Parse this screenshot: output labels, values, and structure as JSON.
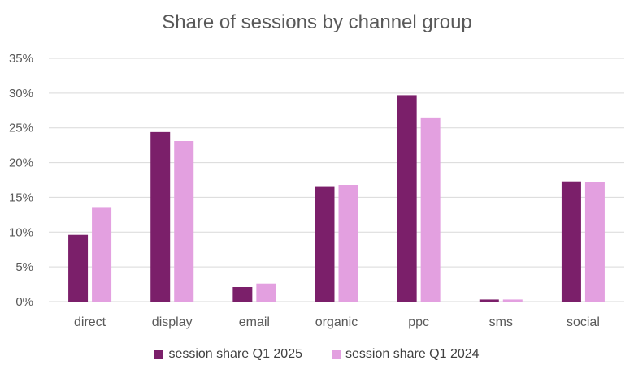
{
  "chart_data": {
    "type": "bar",
    "title": "Share of sessions by channel group",
    "categories": [
      "direct",
      "display",
      "email",
      "organic",
      "ppc",
      "sms",
      "social"
    ],
    "series": [
      {
        "name": "session share Q1 2025",
        "color": "#7B1F6A",
        "values": [
          9.6,
          24.4,
          2.1,
          16.5,
          29.7,
          0.3,
          17.3
        ]
      },
      {
        "name": "session share Q1 2024",
        "color": "#E3A0E0",
        "values": [
          13.6,
          23.1,
          2.6,
          16.8,
          26.5,
          0.3,
          17.2
        ]
      }
    ],
    "ylim": [
      0,
      35
    ],
    "yticks": [
      "0%",
      "5%",
      "10%",
      "15%",
      "20%",
      "25%",
      "30%",
      "35%"
    ],
    "ytick_values": [
      0,
      5,
      10,
      15,
      20,
      25,
      30,
      35
    ],
    "grid": true,
    "legend_position": "bottom",
    "gridline_color": "#D9D9D9",
    "text_color": "#595959"
  }
}
